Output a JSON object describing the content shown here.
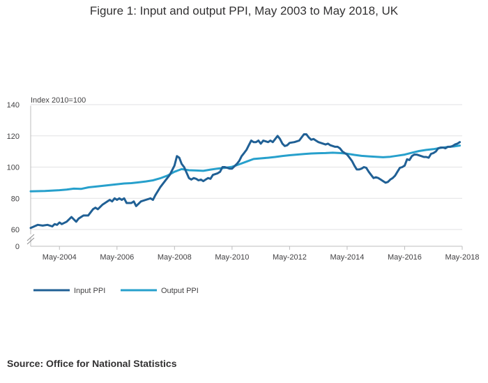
{
  "title": "Figure 1: Input and output PPI, May 2003 to May 2018, UK",
  "source": "Source: Office for National Statistics",
  "chart_data": {
    "type": "line",
    "title": "Figure 1: Input and output PPI, May 2003 to May 2018, UK",
    "xlabel": "",
    "ylabel": "Index 2010=100",
    "ylim": [
      0,
      140
    ],
    "y_ticks": [
      0,
      60,
      80,
      100,
      120,
      140
    ],
    "axis_break": "between 0 and 60",
    "x_ticks": [
      "May-2004",
      "May-2006",
      "May-2008",
      "May-2010",
      "May-2012",
      "May-2014",
      "May-2016",
      "May-2018"
    ],
    "x_start": "May-2003",
    "x_end": "May-2018",
    "grid": true,
    "legend_position": "bottom-left",
    "series": [
      {
        "name": "Input PPI",
        "color": "#206095",
        "points": [
          [
            0,
            61
          ],
          [
            3,
            63
          ],
          [
            5,
            62.5
          ],
          [
            7,
            63
          ],
          [
            9,
            62
          ],
          [
            10,
            63.5
          ],
          [
            11,
            63
          ],
          [
            12,
            64.5
          ],
          [
            13,
            63.5
          ],
          [
            15,
            65
          ],
          [
            17,
            68
          ],
          [
            19,
            65
          ],
          [
            20,
            67
          ],
          [
            22,
            69
          ],
          [
            24,
            69
          ],
          [
            26,
            73
          ],
          [
            27,
            74
          ],
          [
            28,
            73
          ],
          [
            30,
            76
          ],
          [
            32,
            78
          ],
          [
            33,
            79
          ],
          [
            34,
            78
          ],
          [
            35,
            80
          ],
          [
            36,
            79
          ],
          [
            37,
            80
          ],
          [
            38,
            79
          ],
          [
            39,
            80
          ],
          [
            40,
            77
          ],
          [
            42,
            77
          ],
          [
            43,
            78
          ],
          [
            44,
            75
          ],
          [
            46,
            78
          ],
          [
            48,
            79
          ],
          [
            50,
            80
          ],
          [
            51,
            79
          ],
          [
            52,
            82
          ],
          [
            54,
            87
          ],
          [
            56,
            91
          ],
          [
            58,
            95
          ],
          [
            60,
            101
          ],
          [
            61,
            107
          ],
          [
            62,
            106
          ],
          [
            63,
            102
          ],
          [
            64,
            100
          ],
          [
            66,
            93
          ],
          [
            67,
            92
          ],
          [
            68,
            93
          ],
          [
            69,
            92.5
          ],
          [
            70,
            91.5
          ],
          [
            71,
            92
          ],
          [
            72,
            91
          ],
          [
            73,
            92
          ],
          [
            74,
            93
          ],
          [
            75,
            92.5
          ],
          [
            76,
            95
          ],
          [
            78,
            96
          ],
          [
            79,
            97
          ],
          [
            80,
            100
          ],
          [
            81,
            100
          ],
          [
            82,
            99.5
          ],
          [
            83,
            99
          ],
          [
            84,
            99
          ],
          [
            86,
            102
          ],
          [
            87,
            104
          ],
          [
            88,
            107
          ],
          [
            89,
            109
          ],
          [
            90,
            111
          ],
          [
            91,
            114
          ],
          [
            92,
            117
          ],
          [
            93,
            116
          ],
          [
            94,
            116
          ],
          [
            95,
            117
          ],
          [
            96,
            115
          ],
          [
            97,
            117
          ],
          [
            98,
            116.5
          ],
          [
            99,
            116
          ],
          [
            100,
            117
          ],
          [
            101,
            116
          ],
          [
            102,
            118
          ],
          [
            103,
            120
          ],
          [
            104,
            118
          ],
          [
            105,
            115
          ],
          [
            106,
            113.5
          ],
          [
            107,
            114
          ],
          [
            108,
            115.5
          ],
          [
            110,
            116
          ],
          [
            112,
            117
          ],
          [
            113,
            119
          ],
          [
            114,
            121
          ],
          [
            115,
            121
          ],
          [
            116,
            119
          ],
          [
            117,
            117.5
          ],
          [
            118,
            118
          ],
          [
            119,
            117
          ],
          [
            120,
            116
          ],
          [
            121,
            115.5
          ],
          [
            122,
            115
          ],
          [
            123,
            114.5
          ],
          [
            124,
            115
          ],
          [
            125,
            114
          ],
          [
            126,
            113.5
          ],
          [
            127,
            113
          ],
          [
            128,
            113
          ],
          [
            129,
            112
          ],
          [
            130,
            110
          ],
          [
            131,
            109
          ],
          [
            132,
            108
          ],
          [
            133,
            106
          ],
          [
            134,
            104
          ],
          [
            135,
            101
          ],
          [
            136,
            98.5
          ],
          [
            137,
            98.5
          ],
          [
            138,
            99
          ],
          [
            139,
            100
          ],
          [
            140,
            99.5
          ],
          [
            141,
            97
          ],
          [
            142,
            95
          ],
          [
            143,
            93
          ],
          [
            144,
            93.5
          ],
          [
            145,
            93
          ],
          [
            146,
            92
          ],
          [
            147,
            91
          ],
          [
            148,
            90
          ],
          [
            149,
            90.5
          ],
          [
            150,
            92
          ],
          [
            151,
            93
          ],
          [
            152,
            94.5
          ],
          [
            153,
            97
          ],
          [
            154,
            99.5
          ],
          [
            155,
            100
          ],
          [
            156,
            101
          ],
          [
            157,
            105
          ],
          [
            158,
            104.5
          ],
          [
            159,
            107
          ],
          [
            160,
            108
          ],
          [
            161,
            108
          ],
          [
            162,
            107.5
          ],
          [
            163,
            107
          ],
          [
            164,
            106.5
          ],
          [
            165,
            106.5
          ],
          [
            166,
            106
          ],
          [
            167,
            108.5
          ],
          [
            168,
            109
          ],
          [
            169,
            110
          ],
          [
            170,
            112
          ],
          [
            171,
            112.5
          ],
          [
            172,
            112.5
          ],
          [
            173,
            112
          ],
          [
            174,
            113
          ],
          [
            175,
            113
          ],
          [
            176,
            113.5
          ],
          [
            177,
            114.5
          ],
          [
            178,
            115
          ],
          [
            179,
            116
          ]
        ]
      },
      {
        "name": "Output PPI",
        "color": "#27a0cc",
        "points": [
          [
            0,
            84.5
          ],
          [
            6,
            84.7
          ],
          [
            12,
            85.2
          ],
          [
            15,
            85.6
          ],
          [
            18,
            86.2
          ],
          [
            21,
            86.0
          ],
          [
            24,
            87.0
          ],
          [
            27,
            87.5
          ],
          [
            30,
            88.0
          ],
          [
            33,
            88.5
          ],
          [
            36,
            89.0
          ],
          [
            39,
            89.5
          ],
          [
            42,
            89.7
          ],
          [
            45,
            90.2
          ],
          [
            48,
            90.8
          ],
          [
            51,
            91.5
          ],
          [
            54,
            92.8
          ],
          [
            57,
            94.5
          ],
          [
            60,
            97.0
          ],
          [
            63,
            98.7
          ],
          [
            66,
            98.0
          ],
          [
            69,
            97.8
          ],
          [
            72,
            97.6
          ],
          [
            75,
            98.4
          ],
          [
            78,
            99.0
          ],
          [
            81,
            99.5
          ],
          [
            84,
            100.2
          ],
          [
            87,
            101.8
          ],
          [
            90,
            103.5
          ],
          [
            93,
            105.2
          ],
          [
            96,
            105.6
          ],
          [
            99,
            106.0
          ],
          [
            102,
            106.5
          ],
          [
            105,
            107.1
          ],
          [
            108,
            107.6
          ],
          [
            111,
            108.0
          ],
          [
            114,
            108.4
          ],
          [
            117,
            108.7
          ],
          [
            120,
            108.9
          ],
          [
            123,
            109.0
          ],
          [
            126,
            109.2
          ],
          [
            129,
            109.0
          ],
          [
            132,
            108.6
          ],
          [
            135,
            107.8
          ],
          [
            138,
            107.2
          ],
          [
            141,
            106.9
          ],
          [
            144,
            106.6
          ],
          [
            147,
            106.3
          ],
          [
            150,
            106.6
          ],
          [
            153,
            107.3
          ],
          [
            156,
            108.0
          ],
          [
            159,
            109.2
          ],
          [
            162,
            110.3
          ],
          [
            165,
            111.0
          ],
          [
            168,
            111.5
          ],
          [
            171,
            112.3
          ],
          [
            174,
            112.9
          ],
          [
            177,
            113.3
          ],
          [
            179,
            113.8
          ]
        ]
      }
    ]
  }
}
